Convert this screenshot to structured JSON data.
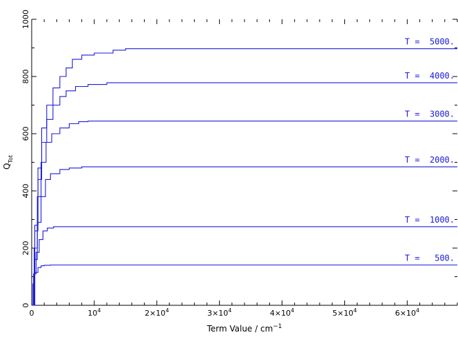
{
  "chart_data": {
    "type": "line",
    "title": "",
    "xlabel": "Term Value / cm",
    "xlabel_sup": "−1",
    "ylabel": "Q",
    "ylabel_sub": "Tot",
    "xlim": [
      0,
      68000
    ],
    "ylim": [
      0,
      1000
    ],
    "grid": false,
    "x_ticks": [
      {
        "value": 10000,
        "label": "10",
        "sup": "4"
      },
      {
        "value": 20000,
        "label": "2×10",
        "sup": "4"
      },
      {
        "value": 30000,
        "label": "3×10",
        "sup": "4"
      },
      {
        "value": 40000,
        "label": "4×10",
        "sup": "4"
      },
      {
        "value": 50000,
        "label": "5×10",
        "sup": "4"
      },
      {
        "value": 60000,
        "label": "6×10",
        "sup": "4"
      }
    ],
    "x_origin_label": "0",
    "y_ticks": [
      {
        "value": 0,
        "label": "0"
      },
      {
        "value": 200,
        "label": "200"
      },
      {
        "value": 400,
        "label": "400"
      },
      {
        "value": 600,
        "label": "600"
      },
      {
        "value": 800,
        "label": "800"
      },
      {
        "value": 1000,
        "label": "1000"
      }
    ],
    "line_color": "#1a1adc",
    "series": [
      {
        "name": "T =   500.",
        "x": [
          0,
          200,
          500,
          1000,
          1500,
          2000,
          3000,
          68000
        ],
        "y": [
          0,
          75,
          115,
          132,
          138,
          140,
          141,
          141
        ]
      },
      {
        "name": "T =  1000.",
        "x": [
          0,
          300,
          700,
          1200,
          1800,
          2500,
          3500,
          68000
        ],
        "y": [
          0,
          110,
          185,
          230,
          260,
          270,
          275,
          275
        ]
      },
      {
        "name": "T =  2000.",
        "x": [
          0,
          400,
          900,
          1500,
          2200,
          3000,
          4500,
          6000,
          8000,
          68000
        ],
        "y": [
          0,
          160,
          290,
          380,
          440,
          460,
          475,
          480,
          484,
          484
        ]
      },
      {
        "name": "T =  3000.",
        "x": [
          0,
          400,
          900,
          1500,
          2300,
          3200,
          4500,
          6000,
          7500,
          9000,
          68000
        ],
        "y": [
          0,
          200,
          380,
          500,
          570,
          600,
          620,
          635,
          642,
          644,
          644
        ]
      },
      {
        "name": "T =  4000.",
        "x": [
          0,
          500,
          1000,
          1600,
          2400,
          3400,
          4500,
          5500,
          7000,
          9000,
          12000,
          68000
        ],
        "y": [
          0,
          260,
          440,
          570,
          650,
          700,
          730,
          750,
          765,
          772,
          778,
          778
        ]
      },
      {
        "name": "T =  5000.",
        "x": [
          0,
          500,
          1000,
          1600,
          2400,
          3400,
          4500,
          5500,
          6500,
          8000,
          10000,
          13000,
          15000,
          68000
        ],
        "y": [
          0,
          280,
          480,
          620,
          700,
          760,
          800,
          830,
          860,
          875,
          882,
          892,
          897,
          897
        ]
      }
    ]
  }
}
